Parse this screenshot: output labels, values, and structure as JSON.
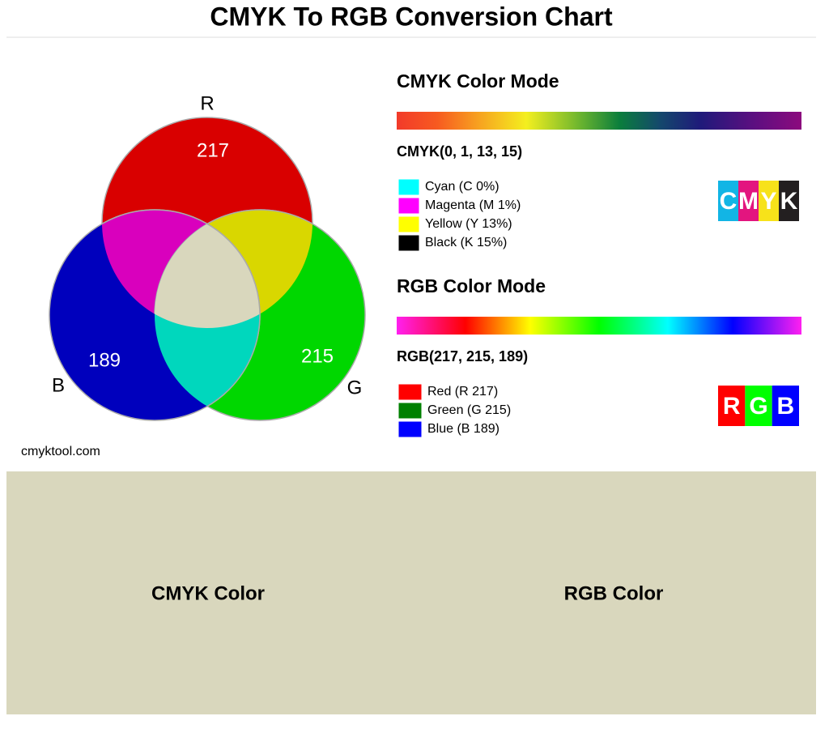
{
  "header": {
    "title": "CMYK To RGB Conversion Chart"
  },
  "venn": {
    "labels": {
      "r": "R",
      "g": "G",
      "b": "B"
    },
    "values": {
      "r": 217,
      "g": 215,
      "b": 189
    },
    "source": "cmyktool.com"
  },
  "cmyk": {
    "heading": "CMYK Color Mode",
    "value": "CMYK(0, 1, 13, 15)",
    "legend": [
      "Cyan (C 0%)",
      "Magenta (M 1%)",
      "Yellow (Y 13%)",
      "Black (K 15%)"
    ],
    "logo": [
      "C",
      "M",
      "Y",
      "K"
    ]
  },
  "rgb": {
    "heading": "RGB Color Mode",
    "value": "RGB(217, 215, 189)",
    "legend": [
      "Red (R 217)",
      "Green (G 215)",
      "Blue (B 189)"
    ],
    "logo": [
      "R",
      "G",
      "B"
    ]
  },
  "swatch": {
    "cmyk_label": "CMYK Color",
    "rgb_label": "RGB Color"
  }
}
